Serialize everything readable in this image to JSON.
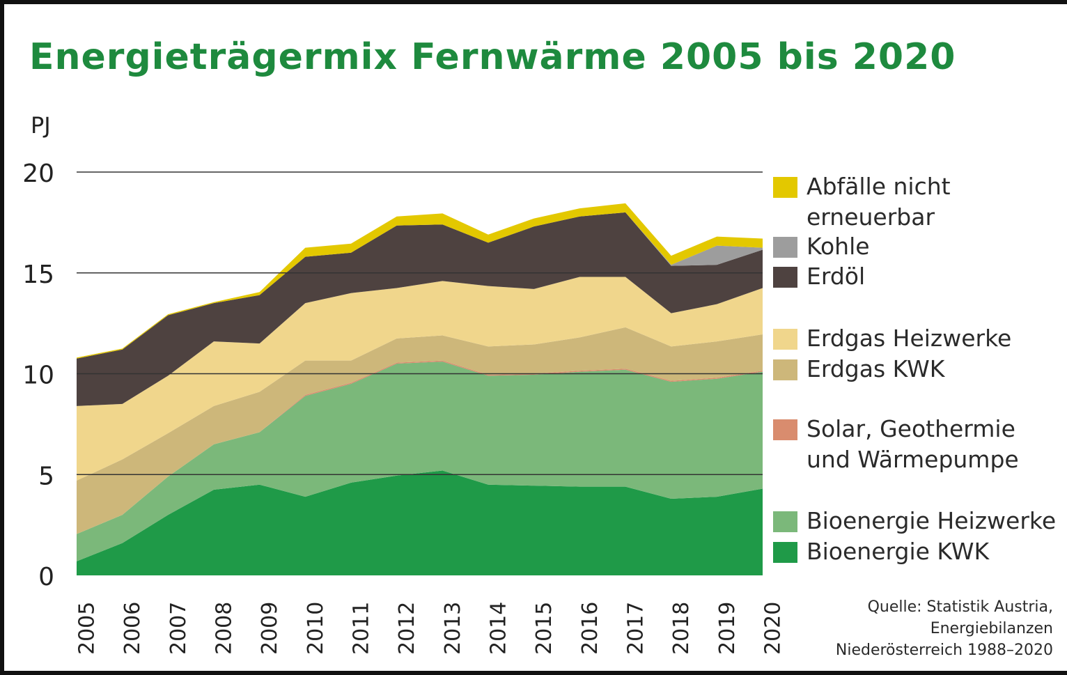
{
  "chart_data": {
    "type": "stacked-area",
    "title": "Energieträgermix Fernwärme 2005 bis 2020",
    "y_axis_label": "PJ",
    "categories": [
      "2005",
      "2006",
      "2007",
      "2008",
      "2009",
      "2010",
      "2011",
      "2012",
      "2013",
      "2014",
      "2015",
      "2016",
      "2017",
      "2018",
      "2019",
      "2020"
    ],
    "ylim": [
      0,
      20
    ],
    "yticks": [
      0,
      5,
      10,
      15,
      20
    ],
    "grid": true,
    "series": [
      {
        "name": "Bioenergie KWK",
        "color": "#1f9a48",
        "values": [
          0.7,
          1.6,
          3.0,
          4.25,
          4.5,
          3.9,
          4.6,
          4.95,
          5.2,
          4.5,
          4.45,
          4.4,
          4.4,
          3.8,
          3.9,
          4.3
        ]
      },
      {
        "name": "Bioenergie Heizwerke",
        "color": "#7bb87a",
        "values": [
          1.35,
          1.4,
          1.9,
          2.25,
          2.6,
          5.0,
          4.9,
          5.55,
          5.4,
          5.4,
          5.5,
          5.7,
          5.8,
          5.8,
          5.85,
          5.8
        ]
      },
      {
        "name": "Solar, Geothermie und Wärmepumpe",
        "color": "#d98c6e",
        "values": [
          0,
          0,
          0,
          0,
          0,
          0.05,
          0.05,
          0.05,
          0.05,
          0.05,
          0.05,
          0.05,
          0.05,
          0.05,
          0.05,
          0.05
        ]
      },
      {
        "name": "Erdgas KWK",
        "color": "#cdb77a",
        "values": [
          2.65,
          2.75,
          2.15,
          1.9,
          2.0,
          1.7,
          1.1,
          1.2,
          1.25,
          1.4,
          1.45,
          1.65,
          2.05,
          1.7,
          1.8,
          1.8
        ]
      },
      {
        "name": "Erdgas Heizwerke",
        "color": "#f0d68c",
        "values": [
          3.7,
          2.75,
          2.85,
          3.2,
          2.4,
          2.85,
          3.35,
          2.5,
          2.7,
          3.0,
          2.75,
          3.0,
          2.5,
          1.65,
          1.85,
          2.3
        ]
      },
      {
        "name": "Erdöl",
        "color": "#4e4240",
        "values": [
          2.35,
          2.7,
          3.0,
          1.9,
          2.4,
          2.3,
          2.0,
          3.1,
          2.8,
          2.15,
          3.1,
          3.0,
          3.2,
          2.35,
          1.95,
          1.9
        ]
      },
      {
        "name": "Kohle",
        "color": "#9d9d9d",
        "values": [
          0,
          0,
          0,
          0,
          0,
          0,
          0,
          0,
          0,
          0,
          0,
          0,
          0,
          0.05,
          0.95,
          0.1
        ]
      },
      {
        "name": "Abfälle nicht erneuerbar",
        "color": "#e3c800",
        "values": [
          0.05,
          0.05,
          0.05,
          0.05,
          0.15,
          0.45,
          0.45,
          0.45,
          0.55,
          0.4,
          0.4,
          0.4,
          0.45,
          0.45,
          0.45,
          0.45
        ]
      }
    ],
    "source": [
      "Quelle: Statistik Austria,",
      "Energiebilanzen",
      "Niederösterreich 1988–2020"
    ]
  }
}
